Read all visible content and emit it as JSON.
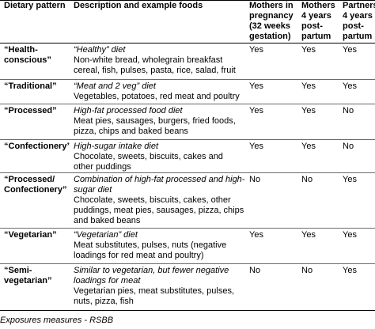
{
  "table": {
    "headers": [
      "Dietary pattern",
      "Description and example foods",
      "Mothers in pregnancy (32 weeks gestation)",
      "Mothers 4 years post-partum",
      "Partners 4 years post-partum"
    ],
    "rows": [
      {
        "pattern": "“Health-conscious”",
        "title": "“Healthy” diet",
        "foods": "Non-white bread, wholegrain breakfast cereal, fish, pulses, pasta, rice, salad, fruit",
        "pregnancy": "Yes",
        "mothers4": "Yes",
        "partners4": "Yes"
      },
      {
        "pattern": "“Traditional”",
        "title": "“Meat and 2 veg” diet",
        "foods": "Vegetables, potatoes, red meat and poultry",
        "pregnancy": "Yes",
        "mothers4": "Yes",
        "partners4": "Yes"
      },
      {
        "pattern": "“Processed”",
        "title": "High-fat processed food diet",
        "foods": "Meat pies, sausages, burgers, fried foods, pizza, chips and baked beans",
        "pregnancy": "Yes",
        "mothers4": "Yes",
        "partners4": "No"
      },
      {
        "pattern": "“Confectionery”",
        "title": "High-sugar intake diet",
        "foods": "Chocolate, sweets, biscuits, cakes and other puddings",
        "pregnancy": "Yes",
        "mothers4": "Yes",
        "partners4": "No"
      },
      {
        "pattern": "“Processed/ Confectionery”",
        "title": "Combination of high-fat processed and high-sugar diet",
        "foods": "Chocolate, sweets, biscuits, cakes, other puddings, meat pies, sausages, pizza, chips and baked beans",
        "pregnancy": "No",
        "mothers4": "No",
        "partners4": "Yes"
      },
      {
        "pattern": "“Vegetarian”",
        "title": "“Vegetarian” diet",
        "foods": "Meat substitutes, pulses, nuts (negative loadings for red meat and poultry)",
        "pregnancy": "Yes",
        "mothers4": "Yes",
        "partners4": "Yes"
      },
      {
        "pattern": "“Semi-vegetarian”",
        "title": "Similar to vegetarian, but fewer negative loadings for meat",
        "foods": "Vegetarian pies, meat substitutes, pulses, nuts, pizza, fish",
        "pregnancy": "No",
        "mothers4": "No",
        "partners4": "Yes"
      }
    ]
  },
  "caption": "Exposures measures - RSBB"
}
